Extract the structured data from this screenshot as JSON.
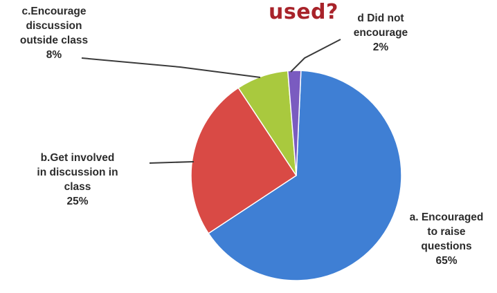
{
  "chart_data": {
    "type": "pie",
    "title": "used?",
    "slices": [
      {
        "key": "a",
        "label_lines": [
          "a. Encouraged",
          "to raise",
          "questions"
        ],
        "value": 65,
        "pct_text": "65%",
        "color": "#3f7fd4"
      },
      {
        "key": "b",
        "label_lines": [
          "b.Get involved",
          "in discussion in",
          "class"
        ],
        "value": 25,
        "pct_text": "25%",
        "color": "#d94a45"
      },
      {
        "key": "c",
        "label_lines": [
          "c.Encourage",
          "discussion",
          "outside class"
        ],
        "value": 8,
        "pct_text": "8%",
        "color": "#a9c93e"
      },
      {
        "key": "d",
        "label_lines": [
          "d Did not",
          "encourage"
        ],
        "value": 2,
        "pct_text": "2%",
        "color": "#7a5bc0"
      }
    ]
  }
}
